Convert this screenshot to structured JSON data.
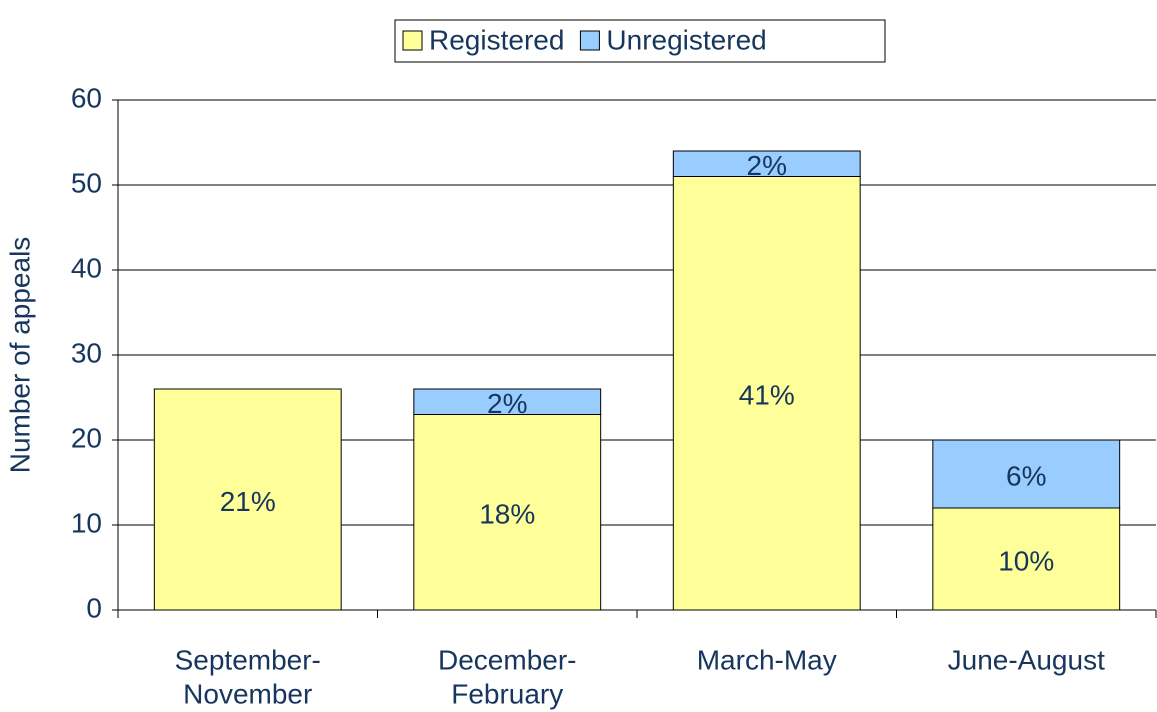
{
  "chart_data": {
    "type": "stacked_bar",
    "y_label": "Number of appeals",
    "categories": [
      [
        "September-",
        "November"
      ],
      [
        "December-",
        "February"
      ],
      [
        "March-May"
      ],
      [
        "June-August"
      ]
    ],
    "series": [
      {
        "name": "Registered",
        "color": "#ffff99",
        "values": [
          26,
          23,
          51,
          12
        ],
        "labels": [
          "21%",
          "18%",
          "41%",
          "10%"
        ]
      },
      {
        "name": "Unregistered",
        "color": "#99ccff",
        "values": [
          0,
          3,
          3,
          8
        ],
        "labels": [
          null,
          "2%",
          "2%",
          "6%"
        ]
      }
    ],
    "ylim": [
      0,
      60
    ],
    "yticks": [
      0,
      10,
      20,
      30,
      40,
      50,
      60
    ],
    "grid": true,
    "legend": "top"
  }
}
